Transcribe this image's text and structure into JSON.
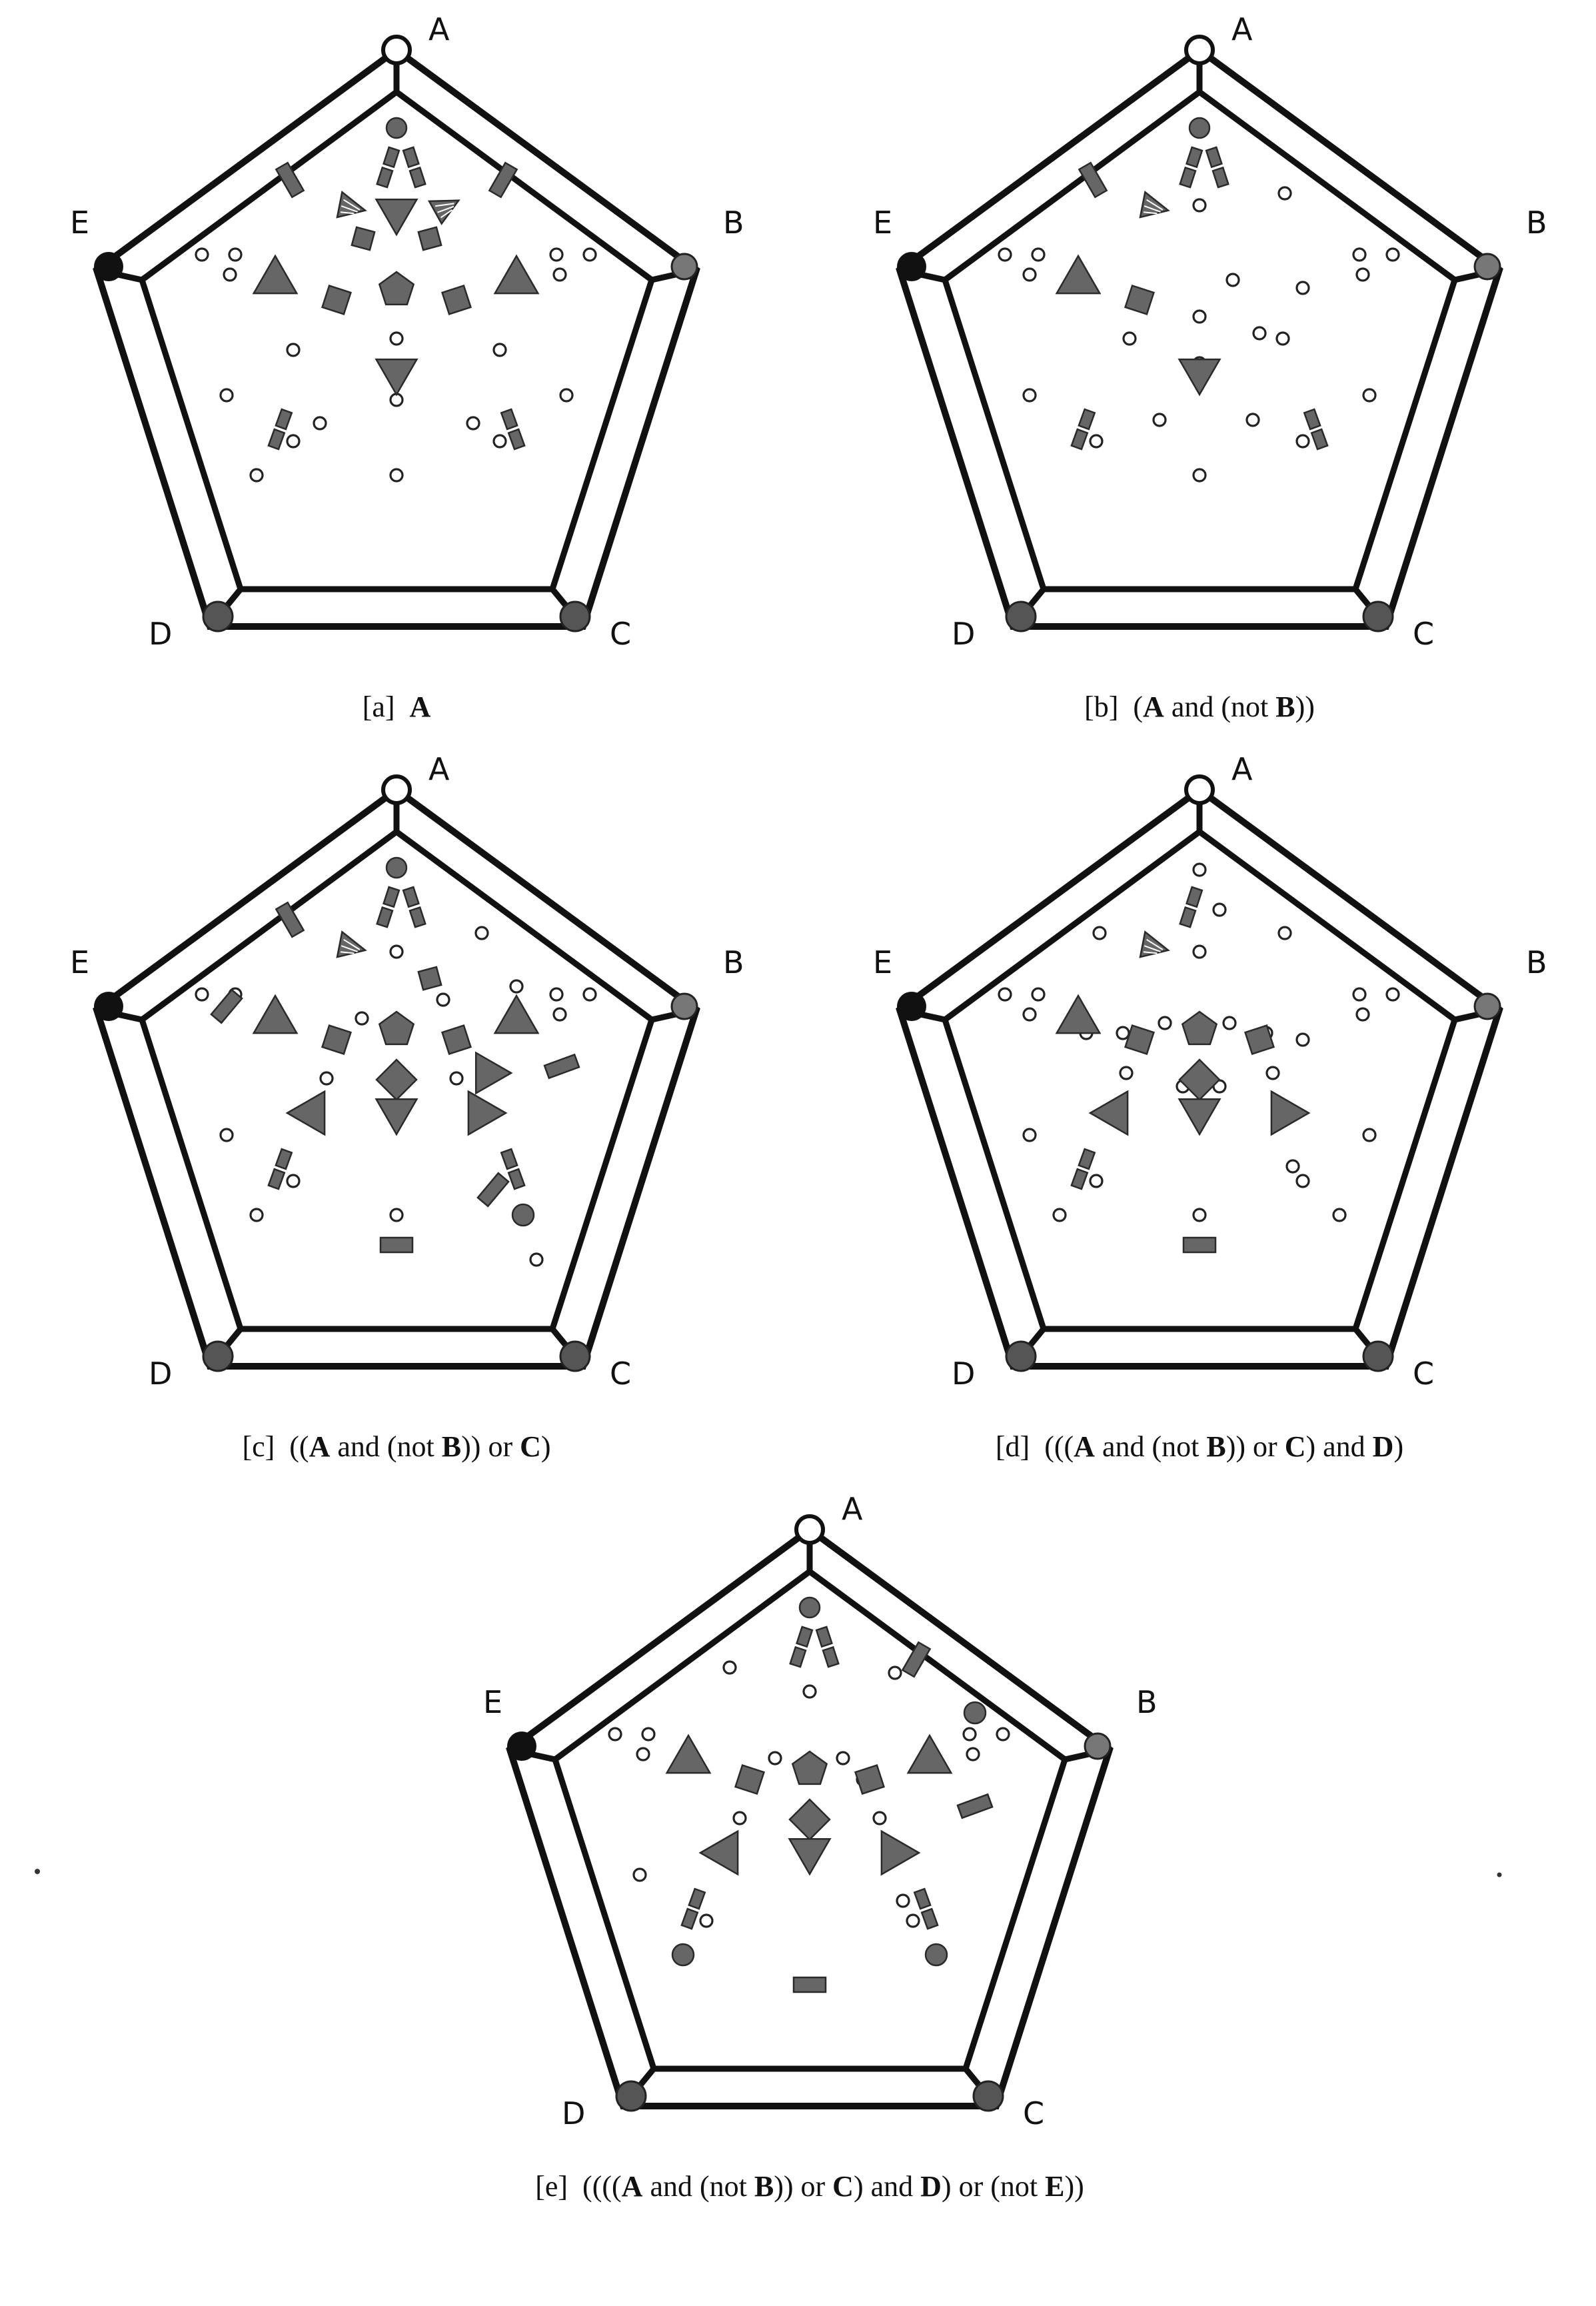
{
  "vertex_labels": {
    "A": "A",
    "B": "B",
    "C": "C",
    "D": "D",
    "E": "E"
  },
  "colors": {
    "ink": "#111111",
    "shape_fill": "#666666",
    "background": "#ffffff"
  },
  "panels": [
    {
      "id": "a",
      "tag": "[a]",
      "caption": [
        {
          "text": "A",
          "bold": true
        }
      ],
      "small_circle_count": 18,
      "shapes": [
        "top-circle",
        "top-pair-left",
        "top-pair-right",
        "wedge-upper-left",
        "wedge-upper-right",
        "inverted-triangle-upper",
        "flag-left",
        "flag-right",
        "square-left",
        "square-right",
        "triangle-left",
        "triangle-right",
        "pentagon-center",
        "square-lower-left",
        "square-lower-right",
        "inverted-triangle-lower",
        "pair-lower-left",
        "pair-lower-right"
      ]
    },
    {
      "id": "b",
      "tag": "[b]",
      "caption": [
        {
          "text": "(",
          "bold": false
        },
        {
          "text": "A",
          "bold": true
        },
        {
          "text": " and (not ",
          "bold": false
        },
        {
          "text": "B",
          "bold": true
        },
        {
          "text": "))",
          "bold": false
        }
      ],
      "small_circle_count": 22,
      "shapes": [
        "top-circle",
        "top-pair-left",
        "top-pair-right",
        "wedge-upper-left",
        "flag-left",
        "triangle-left",
        "square-lower-left",
        "inverted-triangle-lower",
        "pair-lower-left",
        "pair-lower-right"
      ]
    },
    {
      "id": "c",
      "tag": "[c]",
      "caption": [
        {
          "text": "((",
          "bold": false
        },
        {
          "text": "A",
          "bold": true
        },
        {
          "text": " and (not ",
          "bold": false
        },
        {
          "text": "B",
          "bold": true
        },
        {
          "text": ")) or ",
          "bold": false
        },
        {
          "text": "C",
          "bold": true
        },
        {
          "text": ")",
          "bold": false
        }
      ],
      "small_circle_count": 17,
      "shapes": [
        "top-circle",
        "top-pair-left",
        "top-pair-right",
        "wedge-upper-left",
        "flag-left",
        "bar-left",
        "square-right",
        "triangle-left",
        "triangle-right",
        "pentagon-center",
        "square-lower-left",
        "square-lower-right",
        "triangle-pointing-right",
        "diamond-center",
        "inverted-triangle-lower",
        "triangle-lower-left",
        "triangle-lower-right",
        "bar-right",
        "pair-lower-left",
        "pair-lower-right",
        "bar-lower-right",
        "circle-lower-right",
        "rectangle-bottom"
      ]
    },
    {
      "id": "d",
      "tag": "[d]",
      "caption": [
        {
          "text": "(((",
          "bold": false
        },
        {
          "text": "A",
          "bold": true
        },
        {
          "text": " and (not ",
          "bold": false
        },
        {
          "text": "B",
          "bold": true
        },
        {
          "text": ")) or ",
          "bold": false
        },
        {
          "text": "C",
          "bold": true
        },
        {
          "text": ") and ",
          "bold": false
        },
        {
          "text": "D",
          "bold": true
        },
        {
          "text": ")",
          "bold": false
        }
      ],
      "small_circle_count": 29,
      "shapes": [
        "top-pair-left",
        "wedge-upper-left",
        "triangle-left",
        "pentagon-center",
        "square-lower-left",
        "square-lower-right",
        "diamond-center",
        "inverted-triangle-lower",
        "triangle-lower-left",
        "triangle-lower-right",
        "pair-lower-left",
        "rectangle-bottom"
      ]
    },
    {
      "id": "e",
      "tag": "[e]",
      "caption": [
        {
          "text": "((((",
          "bold": false
        },
        {
          "text": "A",
          "bold": true
        },
        {
          "text": " and (not ",
          "bold": false
        },
        {
          "text": "B",
          "bold": true
        },
        {
          "text": ")) or ",
          "bold": false
        },
        {
          "text": "C",
          "bold": true
        },
        {
          "text": ") and ",
          "bold": false
        },
        {
          "text": "D",
          "bold": true
        },
        {
          "text": ") or (not ",
          "bold": false
        },
        {
          "text": "E",
          "bold": true
        },
        {
          "text": "))",
          "bold": false
        }
      ],
      "small_circle_count": 18,
      "shapes": [
        "top-circle",
        "top-pair-left",
        "top-pair-right",
        "flag-right",
        "triangle-left",
        "triangle-right",
        "circle-right",
        "bar-right",
        "pentagon-center",
        "square-lower-left",
        "square-lower-right",
        "diamond-center",
        "inverted-triangle-lower",
        "triangle-lower-left",
        "triangle-lower-right",
        "bar-side-right",
        "pair-lower-left",
        "pair-lower-right",
        "circle-lower-left",
        "circle-lower-right",
        "rectangle-bottom"
      ]
    }
  ]
}
